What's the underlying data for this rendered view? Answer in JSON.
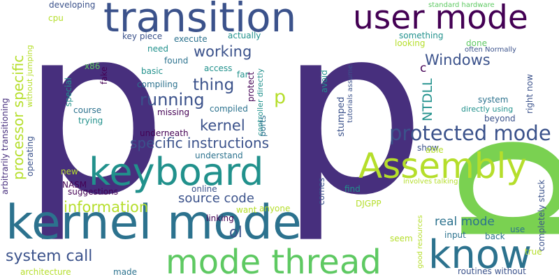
{
  "palette": {
    "dark_purple": "#440154",
    "indigo": "#472f7d",
    "blue": "#3b528b",
    "steel": "#2c728e",
    "teal": "#21918c",
    "green_teal": "#28ae80",
    "green": "#5ec962",
    "lime": "#addc30",
    "yellow": "#b5de2b"
  },
  "words": [
    {
      "text": "p",
      "color": "#472f7d"
    },
    {
      "text": "p",
      "color": "#472f7d"
    },
    {
      "text": "p",
      "color": "#7ad151"
    },
    {
      "text": "transition",
      "color": "#3b528b"
    },
    {
      "text": "user mode",
      "color": "#440154"
    },
    {
      "text": "keyboard",
      "color": "#21918c"
    },
    {
      "text": "kernel mode",
      "color": "#2c728e"
    },
    {
      "text": "know",
      "color": "#2c728e"
    },
    {
      "text": "mode thread",
      "color": "#5ec962"
    },
    {
      "text": "Assembly",
      "color": "#b5de2b"
    },
    {
      "text": "protected mode",
      "color": "#3b528b"
    },
    {
      "text": "processor specific",
      "color": "#b5de2b"
    },
    {
      "text": "specific instructions",
      "color": "#3b528b"
    },
    {
      "text": "information",
      "color": "#b5de2b"
    },
    {
      "text": "source code",
      "color": "#3b528b"
    },
    {
      "text": "system call",
      "color": "#3b528b"
    },
    {
      "text": "real mode",
      "color": "#2c728e"
    },
    {
      "text": "working",
      "color": "#3b528b"
    },
    {
      "text": "running",
      "color": "#3b528b"
    },
    {
      "text": "thing",
      "color": "#3b528b"
    },
    {
      "text": "kernel",
      "color": "#3b528b"
    },
    {
      "text": "Windows",
      "color": "#3b528b"
    },
    {
      "text": "NTDLL",
      "color": "#21918c"
    },
    {
      "text": "p",
      "color": "#b5de2b"
    },
    {
      "text": "ol",
      "color": "#3b528b"
    },
    {
      "text": "c",
      "color": "#440154"
    },
    {
      "text": "developing",
      "color": "#3b528b"
    },
    {
      "text": "cpu",
      "color": "#b5de2b"
    },
    {
      "text": "key piece",
      "color": "#3b528b"
    },
    {
      "text": "execute",
      "color": "#2c728e"
    },
    {
      "text": "actually",
      "color": "#21918c"
    },
    {
      "text": "need",
      "color": "#21918c"
    },
    {
      "text": "found",
      "color": "#2c728e"
    },
    {
      "text": "access",
      "color": "#21918c"
    },
    {
      "text": "far",
      "color": "#21918c"
    },
    {
      "text": "basic",
      "color": "#21918c"
    },
    {
      "text": "x86",
      "color": "#5ec962"
    },
    {
      "text": "fake",
      "color": "#440154"
    },
    {
      "text": "compiling",
      "color": "#2c728e"
    },
    {
      "text": "protect",
      "color": "#440154"
    },
    {
      "text": "controller directly",
      "color": "#21918c"
    },
    {
      "text": "course",
      "color": "#2c728e"
    },
    {
      "text": "compiled",
      "color": "#2c728e"
    },
    {
      "text": "missing",
      "color": "#440154"
    },
    {
      "text": "trying",
      "color": "#21918c"
    },
    {
      "text": "underneath",
      "color": "#440154"
    },
    {
      "text": "understand",
      "color": "#2c728e"
    },
    {
      "text": "special",
      "color": "#21918c"
    },
    {
      "text": "operating",
      "color": "#3b528b"
    },
    {
      "text": "arbitrarily transitioning",
      "color": "#472f7d"
    },
    {
      "text": "without jumping",
      "color": "#b5de2b"
    },
    {
      "text": "new",
      "color": "#b5de2b"
    },
    {
      "text": "NASM",
      "color": "#440154"
    },
    {
      "text": "suggestions",
      "color": "#440154"
    },
    {
      "text": "online",
      "color": "#3b528b"
    },
    {
      "text": "linking",
      "color": "#440154"
    },
    {
      "text": "want",
      "color": "#b5de2b"
    },
    {
      "text": "anyone",
      "color": "#b5de2b"
    },
    {
      "text": "architecture",
      "color": "#b5de2b"
    },
    {
      "text": "made",
      "color": "#2c728e"
    },
    {
      "text": "ports",
      "color": "#2c728e"
    },
    {
      "text": "avoid",
      "color": "#21918c"
    },
    {
      "text": "stumped",
      "color": "#3b528b"
    },
    {
      "text": "tutorials assume",
      "color": "#3b528b"
    },
    {
      "text": "comes",
      "color": "#3b528b"
    },
    {
      "text": "find",
      "color": "#21918c"
    },
    {
      "text": "DJGPP",
      "color": "#b5de2b"
    },
    {
      "text": "standard hardware",
      "color": "#5ec962"
    },
    {
      "text": "something",
      "color": "#21918c"
    },
    {
      "text": "looking",
      "color": "#b5de2b"
    },
    {
      "text": "done",
      "color": "#5ec962"
    },
    {
      "text": "often Normally",
      "color": "#3b528b"
    },
    {
      "text": "system",
      "color": "#2c728e"
    },
    {
      "text": "directly using",
      "color": "#21918c"
    },
    {
      "text": "beyond",
      "color": "#3b528b"
    },
    {
      "text": "right now",
      "color": "#3b528b"
    },
    {
      "text": "completely stuck",
      "color": "#3b528b"
    },
    {
      "text": "show",
      "color": "#3b528b"
    },
    {
      "text": "able",
      "color": "#b5de2b"
    },
    {
      "text": "involves talking",
      "color": "#b5de2b"
    },
    {
      "text": "input",
      "color": "#2c728e"
    },
    {
      "text": "back",
      "color": "#2c728e"
    },
    {
      "text": "use",
      "color": "#2c728e"
    },
    {
      "text": "seem",
      "color": "#b5de2b"
    },
    {
      "text": "good resources",
      "color": "#b5de2b"
    },
    {
      "text": "true",
      "color": "#b5de2b"
    },
    {
      "text": "routines without",
      "color": "#3b528b"
    }
  ]
}
